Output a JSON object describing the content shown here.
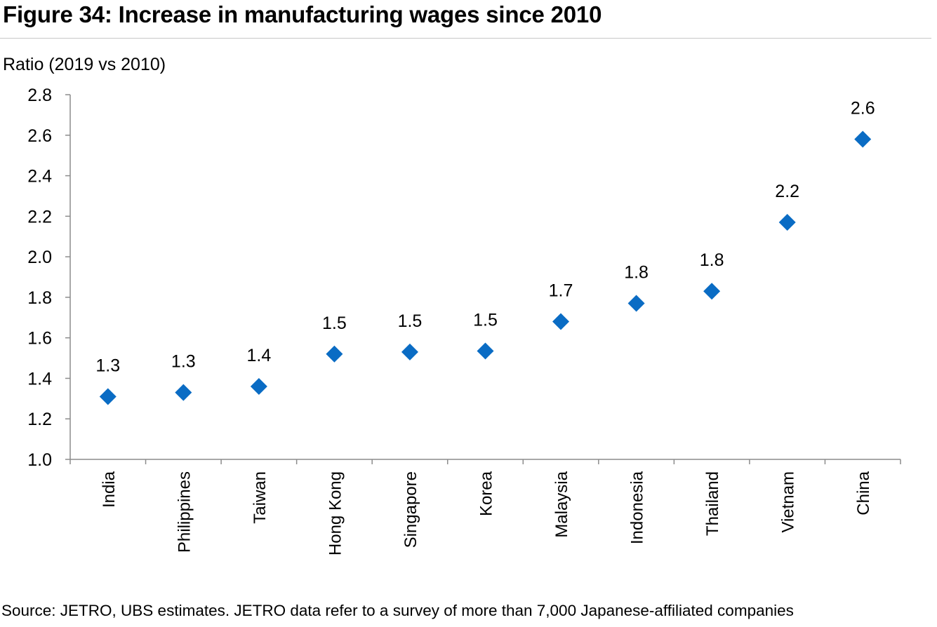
{
  "header": {
    "title": "Figure 34: Increase in manufacturing wages since 2010"
  },
  "footer": {
    "source": "Source: JETRO, UBS estimates. JETRO data refer to a survey of more than 7,000 Japanese-affiliated companies"
  },
  "chart_data": {
    "type": "scatter",
    "title": "Figure 34: Increase in manufacturing wages since 2010",
    "ylabel": "Ratio (2019 vs 2010)",
    "xlabel": "",
    "ylim": [
      1.0,
      2.8
    ],
    "yticks": [
      "1.0",
      "1.2",
      "1.4",
      "1.6",
      "1.8",
      "2.0",
      "2.2",
      "2.4",
      "2.6",
      "2.8"
    ],
    "grid": false,
    "categories": [
      "India",
      "Philippines",
      "Taiwan",
      "Hong Kong",
      "Singapore",
      "Korea",
      "Malaysia",
      "Indonesia",
      "Thailand",
      "Vietnam",
      "China"
    ],
    "values": [
      1.31,
      1.33,
      1.36,
      1.52,
      1.53,
      1.535,
      1.68,
      1.77,
      1.83,
      2.17,
      2.58
    ],
    "data_labels": [
      "1.3",
      "1.3",
      "1.4",
      "1.5",
      "1.5",
      "1.5",
      "1.7",
      "1.8",
      "1.8",
      "2.2",
      "2.6"
    ],
    "marker": "diamond",
    "color": "#0a6cc4"
  }
}
